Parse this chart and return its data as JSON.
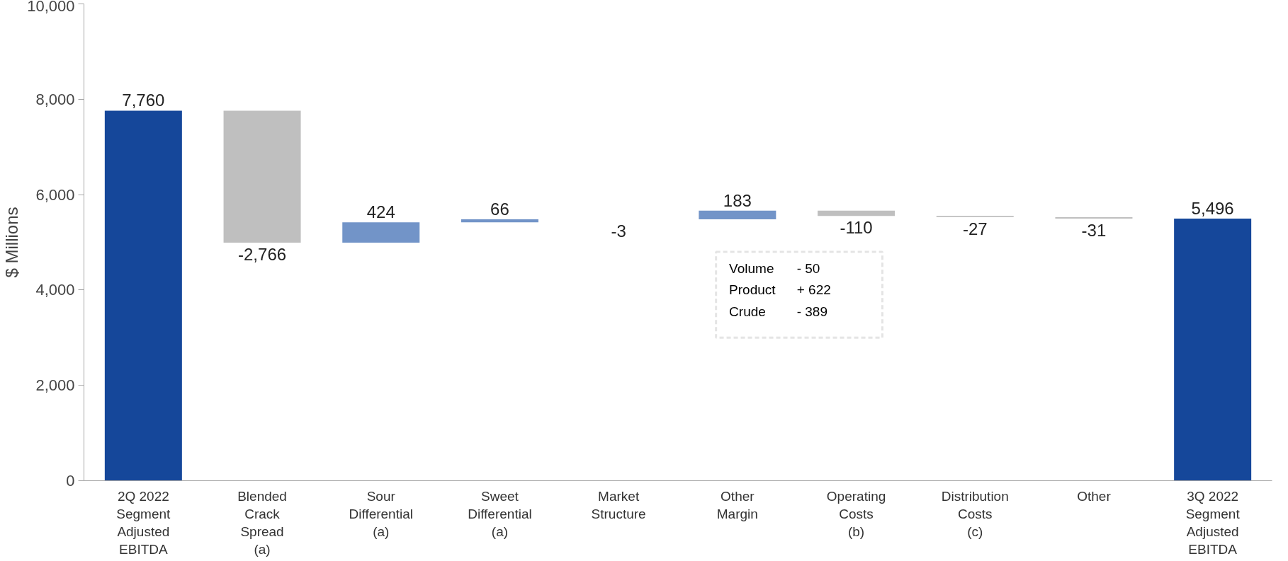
{
  "chart_data": {
    "type": "bar",
    "ylabel": "$ Millions",
    "categories": [
      "2Q 2022\nSegment\nAdjusted\nEBITDA",
      "Blended\nCrack\nSpread\n(a)",
      "Sour\nDifferential\n(a)",
      "Sweet\nDifferential\n(a)",
      "Market\nStructure",
      "Other\nMargin",
      "Operating\nCosts\n(b)",
      "Distribution\nCosts\n(c)",
      "Other",
      "3Q 2022\nSegment\nAdjusted\nEBITDA"
    ],
    "values": [
      7760,
      -2766,
      424,
      66,
      -3,
      183,
      -110,
      -27,
      -31,
      5496
    ],
    "base": [
      0,
      7760,
      4994,
      5418,
      5484,
      5481,
      5664,
      5554,
      5527,
      0
    ],
    "colors": [
      "#15479a",
      "#bfbfbf",
      "#7294c8",
      "#7294c8",
      "#bfbfbf",
      "#7294c8",
      "#bfbfbf",
      "#bfbfbf",
      "#bfbfbf",
      "#15479a"
    ],
    "value_labels": [
      "7,760",
      "-2,766",
      "424",
      "66",
      "-3",
      "183",
      "-110",
      "-27",
      "-31",
      "5,496"
    ],
    "ylim": [
      0,
      10000
    ],
    "yticks": [
      {
        "value": 0,
        "label": "0"
      },
      {
        "value": 2000,
        "label": "2,000"
      },
      {
        "value": 4000,
        "label": "4,000"
      },
      {
        "value": 6000,
        "label": "6,000"
      },
      {
        "value": 8000,
        "label": "8,000"
      },
      {
        "value": 10000,
        "label": "10,000"
      }
    ],
    "annotations": [
      "Volume\t-   50",
      "Product\t+ 622",
      "Crude\t- 389"
    ],
    "grid": false
  }
}
